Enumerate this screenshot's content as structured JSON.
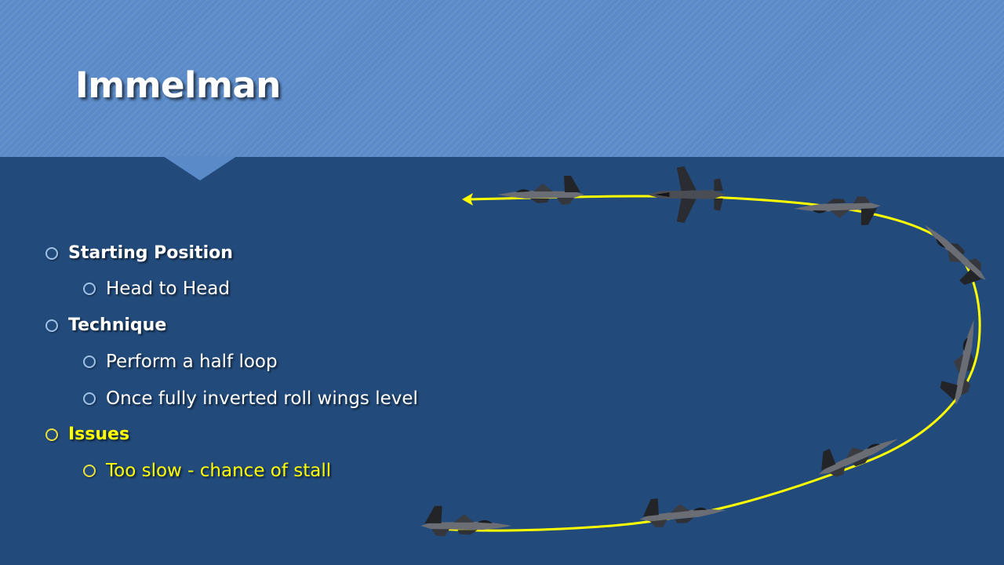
{
  "slide": {
    "title": "Immelman",
    "bullets": [
      {
        "level": 1,
        "text": "Starting Position",
        "color": "#ffffff"
      },
      {
        "level": 2,
        "text": "Head to Head",
        "color": "#ffffff"
      },
      {
        "level": 1,
        "text": "Technique",
        "color": "#ffffff"
      },
      {
        "level": 2,
        "text": "Perform a half loop",
        "color": "#ffffff"
      },
      {
        "level": 2,
        "text": "Once fully inverted roll wings level",
        "color": "#ffffff"
      },
      {
        "level": 1,
        "text": "Issues",
        "color": "#ffff00"
      },
      {
        "level": 2,
        "text": "Too slow - chance of stall",
        "color": "#ffff00"
      }
    ]
  },
  "diagram": {
    "flight_path_color": "#ffff00",
    "aircraft_icon": "jet-fighter-icon",
    "arrow_icon": "arrowhead-left-icon"
  },
  "colors": {
    "header": "#5a8ac8",
    "background": "#224a7a",
    "title": "#ffffff"
  }
}
